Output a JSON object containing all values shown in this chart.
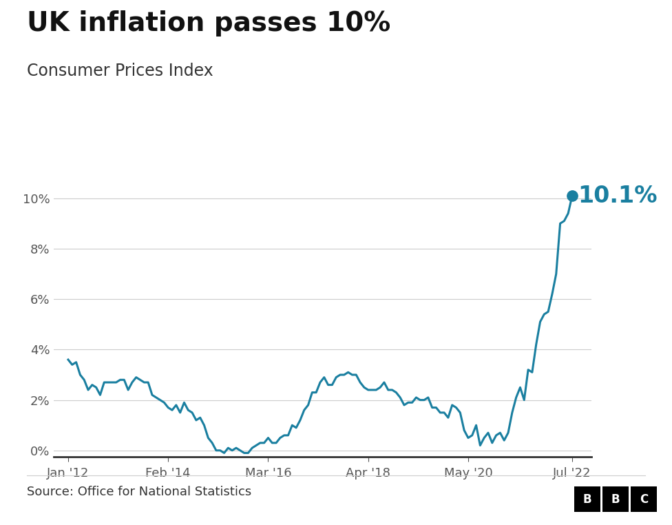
{
  "title": "UK inflation passes 10%",
  "subtitle": "Consumer Prices Index",
  "source": "Source: Office for National Statistics",
  "line_color": "#1a7fa0",
  "endpoint_color": "#1a7fa0",
  "endpoint_label": "10.1%",
  "endpoint_label_color": "#1a7fa0",
  "background_color": "#ffffff",
  "ylim": [
    -0.25,
    11.2
  ],
  "yticks": [
    0,
    2,
    4,
    6,
    8,
    10
  ],
  "ytick_labels": [
    "0%",
    "2%",
    "4%",
    "6%",
    "8%",
    "10%"
  ],
  "xtick_labels": [
    "Jan '12",
    "Feb '14",
    "Mar '16",
    "Apr '18",
    "May '20",
    "Jul '22"
  ],
  "xtick_positions": [
    2012.0,
    2014.083,
    2016.167,
    2018.25,
    2020.333,
    2022.5
  ],
  "title_fontsize": 28,
  "subtitle_fontsize": 17,
  "source_fontsize": 13,
  "label_fontsize": 13,
  "endpoint_label_fontsize": 24,
  "line_width": 2.2,
  "grid_color": "#cccccc",
  "xlim_left": 2011.7,
  "xlim_right": 2022.9,
  "data": [
    [
      2012,
      1,
      3.6
    ],
    [
      2012,
      2,
      3.4
    ],
    [
      2012,
      3,
      3.5
    ],
    [
      2012,
      4,
      3.0
    ],
    [
      2012,
      5,
      2.8
    ],
    [
      2012,
      6,
      2.4
    ],
    [
      2012,
      7,
      2.6
    ],
    [
      2012,
      8,
      2.5
    ],
    [
      2012,
      9,
      2.2
    ],
    [
      2012,
      10,
      2.7
    ],
    [
      2012,
      11,
      2.7
    ],
    [
      2012,
      12,
      2.7
    ],
    [
      2013,
      1,
      2.7
    ],
    [
      2013,
      2,
      2.8
    ],
    [
      2013,
      3,
      2.8
    ],
    [
      2013,
      4,
      2.4
    ],
    [
      2013,
      5,
      2.7
    ],
    [
      2013,
      6,
      2.9
    ],
    [
      2013,
      7,
      2.8
    ],
    [
      2013,
      8,
      2.7
    ],
    [
      2013,
      9,
      2.7
    ],
    [
      2013,
      10,
      2.2
    ],
    [
      2013,
      11,
      2.1
    ],
    [
      2013,
      12,
      2.0
    ],
    [
      2014,
      1,
      1.9
    ],
    [
      2014,
      2,
      1.7
    ],
    [
      2014,
      3,
      1.6
    ],
    [
      2014,
      4,
      1.8
    ],
    [
      2014,
      5,
      1.5
    ],
    [
      2014,
      6,
      1.9
    ],
    [
      2014,
      7,
      1.6
    ],
    [
      2014,
      8,
      1.5
    ],
    [
      2014,
      9,
      1.2
    ],
    [
      2014,
      10,
      1.3
    ],
    [
      2014,
      11,
      1.0
    ],
    [
      2014,
      12,
      0.5
    ],
    [
      2015,
      1,
      0.3
    ],
    [
      2015,
      2,
      0.0
    ],
    [
      2015,
      3,
      0.0
    ],
    [
      2015,
      4,
      -0.1
    ],
    [
      2015,
      5,
      0.1
    ],
    [
      2015,
      6,
      0.0
    ],
    [
      2015,
      7,
      0.1
    ],
    [
      2015,
      8,
      0.0
    ],
    [
      2015,
      9,
      -0.1
    ],
    [
      2015,
      10,
      -0.1
    ],
    [
      2015,
      11,
      0.1
    ],
    [
      2015,
      12,
      0.2
    ],
    [
      2016,
      1,
      0.3
    ],
    [
      2016,
      2,
      0.3
    ],
    [
      2016,
      3,
      0.5
    ],
    [
      2016,
      4,
      0.3
    ],
    [
      2016,
      5,
      0.3
    ],
    [
      2016,
      6,
      0.5
    ],
    [
      2016,
      7,
      0.6
    ],
    [
      2016,
      8,
      0.6
    ],
    [
      2016,
      9,
      1.0
    ],
    [
      2016,
      10,
      0.9
    ],
    [
      2016,
      11,
      1.2
    ],
    [
      2016,
      12,
      1.6
    ],
    [
      2017,
      1,
      1.8
    ],
    [
      2017,
      2,
      2.3
    ],
    [
      2017,
      3,
      2.3
    ],
    [
      2017,
      4,
      2.7
    ],
    [
      2017,
      5,
      2.9
    ],
    [
      2017,
      6,
      2.6
    ],
    [
      2017,
      7,
      2.6
    ],
    [
      2017,
      8,
      2.9
    ],
    [
      2017,
      9,
      3.0
    ],
    [
      2017,
      10,
      3.0
    ],
    [
      2017,
      11,
      3.1
    ],
    [
      2017,
      12,
      3.0
    ],
    [
      2018,
      1,
      3.0
    ],
    [
      2018,
      2,
      2.7
    ],
    [
      2018,
      3,
      2.5
    ],
    [
      2018,
      4,
      2.4
    ],
    [
      2018,
      5,
      2.4
    ],
    [
      2018,
      6,
      2.4
    ],
    [
      2018,
      7,
      2.5
    ],
    [
      2018,
      8,
      2.7
    ],
    [
      2018,
      9,
      2.4
    ],
    [
      2018,
      10,
      2.4
    ],
    [
      2018,
      11,
      2.3
    ],
    [
      2018,
      12,
      2.1
    ],
    [
      2019,
      1,
      1.8
    ],
    [
      2019,
      2,
      1.9
    ],
    [
      2019,
      3,
      1.9
    ],
    [
      2019,
      4,
      2.1
    ],
    [
      2019,
      5,
      2.0
    ],
    [
      2019,
      6,
      2.0
    ],
    [
      2019,
      7,
      2.1
    ],
    [
      2019,
      8,
      1.7
    ],
    [
      2019,
      9,
      1.7
    ],
    [
      2019,
      10,
      1.5
    ],
    [
      2019,
      11,
      1.5
    ],
    [
      2019,
      12,
      1.3
    ],
    [
      2020,
      1,
      1.8
    ],
    [
      2020,
      2,
      1.7
    ],
    [
      2020,
      3,
      1.5
    ],
    [
      2020,
      4,
      0.8
    ],
    [
      2020,
      5,
      0.5
    ],
    [
      2020,
      6,
      0.6
    ],
    [
      2020,
      7,
      1.0
    ],
    [
      2020,
      8,
      0.2
    ],
    [
      2020,
      9,
      0.5
    ],
    [
      2020,
      10,
      0.7
    ],
    [
      2020,
      11,
      0.3
    ],
    [
      2020,
      12,
      0.6
    ],
    [
      2021,
      1,
      0.7
    ],
    [
      2021,
      2,
      0.4
    ],
    [
      2021,
      3,
      0.7
    ],
    [
      2021,
      4,
      1.5
    ],
    [
      2021,
      5,
      2.1
    ],
    [
      2021,
      6,
      2.5
    ],
    [
      2021,
      7,
      2.0
    ],
    [
      2021,
      8,
      3.2
    ],
    [
      2021,
      9,
      3.1
    ],
    [
      2021,
      10,
      4.2
    ],
    [
      2021,
      11,
      5.1
    ],
    [
      2021,
      12,
      5.4
    ],
    [
      2022,
      1,
      5.5
    ],
    [
      2022,
      2,
      6.2
    ],
    [
      2022,
      3,
      7.0
    ],
    [
      2022,
      4,
      9.0
    ],
    [
      2022,
      5,
      9.1
    ],
    [
      2022,
      6,
      9.4
    ],
    [
      2022,
      7,
      10.1
    ]
  ]
}
